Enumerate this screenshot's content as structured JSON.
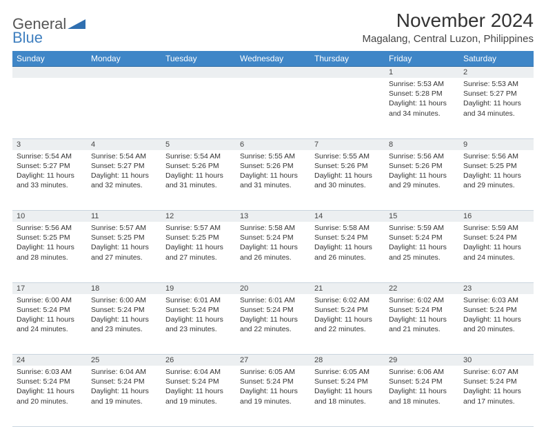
{
  "logo": {
    "text1": "General",
    "text2": "Blue",
    "shape_color": "#2f6fb0"
  },
  "header": {
    "month_title": "November 2024",
    "location": "Magalang, Central Luzon, Philippines"
  },
  "colors": {
    "header_bg": "#3f86c7",
    "header_text": "#ffffff",
    "daynum_bg": "#eceff1",
    "row_divider": "#9fb6c9"
  },
  "weekdays": [
    "Sunday",
    "Monday",
    "Tuesday",
    "Wednesday",
    "Thursday",
    "Friday",
    "Saturday"
  ],
  "weeks": [
    {
      "nums": [
        "",
        "",
        "",
        "",
        "",
        "1",
        "2"
      ],
      "cells": [
        null,
        null,
        null,
        null,
        null,
        {
          "sunrise": "Sunrise: 5:53 AM",
          "sunset": "Sunset: 5:28 PM",
          "daylight": "Daylight: 11 hours and 34 minutes."
        },
        {
          "sunrise": "Sunrise: 5:53 AM",
          "sunset": "Sunset: 5:27 PM",
          "daylight": "Daylight: 11 hours and 34 minutes."
        }
      ]
    },
    {
      "nums": [
        "3",
        "4",
        "5",
        "6",
        "7",
        "8",
        "9"
      ],
      "cells": [
        {
          "sunrise": "Sunrise: 5:54 AM",
          "sunset": "Sunset: 5:27 PM",
          "daylight": "Daylight: 11 hours and 33 minutes."
        },
        {
          "sunrise": "Sunrise: 5:54 AM",
          "sunset": "Sunset: 5:27 PM",
          "daylight": "Daylight: 11 hours and 32 minutes."
        },
        {
          "sunrise": "Sunrise: 5:54 AM",
          "sunset": "Sunset: 5:26 PM",
          "daylight": "Daylight: 11 hours and 31 minutes."
        },
        {
          "sunrise": "Sunrise: 5:55 AM",
          "sunset": "Sunset: 5:26 PM",
          "daylight": "Daylight: 11 hours and 31 minutes."
        },
        {
          "sunrise": "Sunrise: 5:55 AM",
          "sunset": "Sunset: 5:26 PM",
          "daylight": "Daylight: 11 hours and 30 minutes."
        },
        {
          "sunrise": "Sunrise: 5:56 AM",
          "sunset": "Sunset: 5:26 PM",
          "daylight": "Daylight: 11 hours and 29 minutes."
        },
        {
          "sunrise": "Sunrise: 5:56 AM",
          "sunset": "Sunset: 5:25 PM",
          "daylight": "Daylight: 11 hours and 29 minutes."
        }
      ]
    },
    {
      "nums": [
        "10",
        "11",
        "12",
        "13",
        "14",
        "15",
        "16"
      ],
      "cells": [
        {
          "sunrise": "Sunrise: 5:56 AM",
          "sunset": "Sunset: 5:25 PM",
          "daylight": "Daylight: 11 hours and 28 minutes."
        },
        {
          "sunrise": "Sunrise: 5:57 AM",
          "sunset": "Sunset: 5:25 PM",
          "daylight": "Daylight: 11 hours and 27 minutes."
        },
        {
          "sunrise": "Sunrise: 5:57 AM",
          "sunset": "Sunset: 5:25 PM",
          "daylight": "Daylight: 11 hours and 27 minutes."
        },
        {
          "sunrise": "Sunrise: 5:58 AM",
          "sunset": "Sunset: 5:24 PM",
          "daylight": "Daylight: 11 hours and 26 minutes."
        },
        {
          "sunrise": "Sunrise: 5:58 AM",
          "sunset": "Sunset: 5:24 PM",
          "daylight": "Daylight: 11 hours and 26 minutes."
        },
        {
          "sunrise": "Sunrise: 5:59 AM",
          "sunset": "Sunset: 5:24 PM",
          "daylight": "Daylight: 11 hours and 25 minutes."
        },
        {
          "sunrise": "Sunrise: 5:59 AM",
          "sunset": "Sunset: 5:24 PM",
          "daylight": "Daylight: 11 hours and 24 minutes."
        }
      ]
    },
    {
      "nums": [
        "17",
        "18",
        "19",
        "20",
        "21",
        "22",
        "23"
      ],
      "cells": [
        {
          "sunrise": "Sunrise: 6:00 AM",
          "sunset": "Sunset: 5:24 PM",
          "daylight": "Daylight: 11 hours and 24 minutes."
        },
        {
          "sunrise": "Sunrise: 6:00 AM",
          "sunset": "Sunset: 5:24 PM",
          "daylight": "Daylight: 11 hours and 23 minutes."
        },
        {
          "sunrise": "Sunrise: 6:01 AM",
          "sunset": "Sunset: 5:24 PM",
          "daylight": "Daylight: 11 hours and 23 minutes."
        },
        {
          "sunrise": "Sunrise: 6:01 AM",
          "sunset": "Sunset: 5:24 PM",
          "daylight": "Daylight: 11 hours and 22 minutes."
        },
        {
          "sunrise": "Sunrise: 6:02 AM",
          "sunset": "Sunset: 5:24 PM",
          "daylight": "Daylight: 11 hours and 22 minutes."
        },
        {
          "sunrise": "Sunrise: 6:02 AM",
          "sunset": "Sunset: 5:24 PM",
          "daylight": "Daylight: 11 hours and 21 minutes."
        },
        {
          "sunrise": "Sunrise: 6:03 AM",
          "sunset": "Sunset: 5:24 PM",
          "daylight": "Daylight: 11 hours and 20 minutes."
        }
      ]
    },
    {
      "nums": [
        "24",
        "25",
        "26",
        "27",
        "28",
        "29",
        "30"
      ],
      "cells": [
        {
          "sunrise": "Sunrise: 6:03 AM",
          "sunset": "Sunset: 5:24 PM",
          "daylight": "Daylight: 11 hours and 20 minutes."
        },
        {
          "sunrise": "Sunrise: 6:04 AM",
          "sunset": "Sunset: 5:24 PM",
          "daylight": "Daylight: 11 hours and 19 minutes."
        },
        {
          "sunrise": "Sunrise: 6:04 AM",
          "sunset": "Sunset: 5:24 PM",
          "daylight": "Daylight: 11 hours and 19 minutes."
        },
        {
          "sunrise": "Sunrise: 6:05 AM",
          "sunset": "Sunset: 5:24 PM",
          "daylight": "Daylight: 11 hours and 19 minutes."
        },
        {
          "sunrise": "Sunrise: 6:05 AM",
          "sunset": "Sunset: 5:24 PM",
          "daylight": "Daylight: 11 hours and 18 minutes."
        },
        {
          "sunrise": "Sunrise: 6:06 AM",
          "sunset": "Sunset: 5:24 PM",
          "daylight": "Daylight: 11 hours and 18 minutes."
        },
        {
          "sunrise": "Sunrise: 6:07 AM",
          "sunset": "Sunset: 5:24 PM",
          "daylight": "Daylight: 11 hours and 17 minutes."
        }
      ]
    }
  ]
}
